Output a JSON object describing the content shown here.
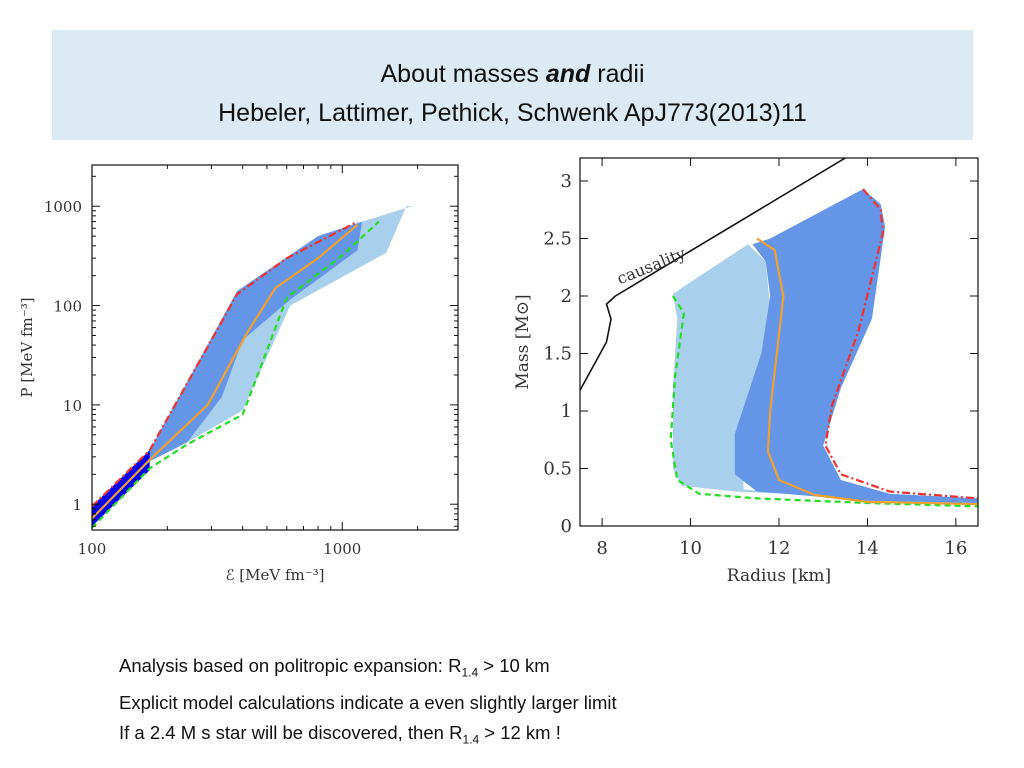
{
  "slide": {
    "title_prefix": "About masses ",
    "title_emph": "and",
    "title_suffix": " radii",
    "subtitle": "Hebeler, Lattimer, Pethick, Schwenk ApJ773(2013)11"
  },
  "chart_data": [
    {
      "type": "area",
      "xlabel": "ℰ [MeV fm⁻³]",
      "ylabel": "P [MeV fm⁻³]",
      "xscale": "log",
      "yscale": "log",
      "xlim": [
        100,
        2900
      ],
      "ylim": [
        0.55,
        2600
      ],
      "x_ticks": [
        100,
        1000
      ],
      "y_ticks": [
        1,
        10,
        100,
        1000
      ],
      "grid": false,
      "colors": {
        "light": "#a8d0ec",
        "medium": "#6495e6",
        "dark": "#0000ee",
        "soft": "#ef3030",
        "stiff": "#22dd22",
        "central": "#f0a030"
      },
      "series": [
        {
          "style": "light-band",
          "points": [
            [
              100,
              0.62
            ],
            [
              170,
              2.7
            ],
            [
              240,
              4.2
            ],
            [
              400,
              8.8
            ],
            [
              620,
              100
            ],
            [
              1500,
              340
            ],
            [
              1800,
              1000
            ],
            [
              1900,
              1000
            ],
            [
              1200,
              700
            ],
            [
              800,
              500
            ],
            [
              400,
              140
            ],
            [
              170,
              3.5
            ],
            [
              100,
              0.95
            ]
          ]
        },
        {
          "style": "medium-band",
          "points": [
            [
              100,
              0.62
            ],
            [
              170,
              2.7
            ],
            [
              240,
              4.2
            ],
            [
              330,
              12
            ],
            [
              400,
              45
            ],
            [
              620,
              115
            ],
            [
              1150,
              360
            ],
            [
              1200,
              700
            ],
            [
              800,
              500
            ],
            [
              380,
              140
            ],
            [
              170,
              3.5
            ],
            [
              100,
              0.95
            ]
          ]
        },
        {
          "style": "dark-band",
          "points": [
            [
              100,
              0.6
            ],
            [
              170,
              2.2
            ],
            [
              170,
              3.5
            ],
            [
              100,
              0.95
            ]
          ]
        },
        {
          "style": "soft-dash-dot",
          "points": [
            [
              100,
              0.95
            ],
            [
              170,
              3.5
            ],
            [
              320,
              60
            ],
            [
              380,
              130
            ],
            [
              600,
              300
            ],
            [
              1150,
              700
            ]
          ]
        },
        {
          "style": "stiff-dashed",
          "points": [
            [
              100,
              0.58
            ],
            [
              170,
              2.3
            ],
            [
              240,
              4.0
            ],
            [
              400,
              8.0
            ],
            [
              600,
              120
            ],
            [
              1000,
              320
            ],
            [
              1400,
              700
            ]
          ]
        },
        {
          "style": "central",
          "points": [
            [
              100,
              0.72
            ],
            [
              170,
              2.8
            ],
            [
              290,
              10
            ],
            [
              420,
              55
            ],
            [
              540,
              150
            ],
            [
              800,
              300
            ],
            [
              1150,
              650
            ]
          ]
        }
      ]
    },
    {
      "type": "line",
      "xlabel": "Radius [km]",
      "ylabel": "Mass [M⊙]",
      "xlim": [
        7.5,
        16.5
      ],
      "ylim": [
        0,
        3.2
      ],
      "x_ticks": [
        8,
        10,
        12,
        14,
        16
      ],
      "y_ticks": [
        0,
        0.5,
        1,
        1.5,
        2,
        2.5,
        3
      ],
      "y_tick_labels": [
        "0",
        "0.5",
        "1",
        "1.5",
        "2",
        "2.5",
        "3"
      ],
      "annotations": [
        {
          "text": "causality"
        }
      ],
      "grid": false,
      "series": [
        {
          "style": "causality",
          "points": [
            [
              7.5,
              1.18
            ],
            [
              8.1,
              1.6
            ],
            [
              8.2,
              1.8
            ],
            [
              8.1,
              1.93
            ],
            [
              8.3,
              2.0
            ],
            [
              13.5,
              3.2
            ]
          ]
        },
        {
          "style": "light-band",
          "points": [
            [
              9.6,
              2.02
            ],
            [
              9.7,
              1.8
            ],
            [
              9.6,
              1.2
            ],
            [
              9.6,
              0.5
            ],
            [
              9.8,
              0.35
            ],
            [
              11.0,
              0.3
            ],
            [
              14.0,
              0.25
            ],
            [
              16.5,
              0.22
            ],
            [
              16.5,
              0.19
            ],
            [
              14,
              0.21
            ],
            [
              11.2,
              0.32
            ],
            [
              11.2,
              0.5
            ],
            [
              11.6,
              1.2
            ],
            [
              11.8,
              1.9
            ],
            [
              11.7,
              2.3
            ],
            [
              11.3,
              2.45
            ]
          ]
        },
        {
          "style": "medium-band",
          "points": [
            [
              11.4,
              2.45
            ],
            [
              11.8,
              2.5
            ],
            [
              13.9,
              2.93
            ],
            [
              14.3,
              2.8
            ],
            [
              14.4,
              2.6
            ],
            [
              14.1,
              1.8
            ],
            [
              13.4,
              1.2
            ],
            [
              13.0,
              0.7
            ],
            [
              13.4,
              0.4
            ],
            [
              14.5,
              0.28
            ],
            [
              16.5,
              0.24
            ],
            [
              16.5,
              0.2
            ],
            [
              14.0,
              0.22
            ],
            [
              11.5,
              0.3
            ],
            [
              11.0,
              0.45
            ],
            [
              11.0,
              0.8
            ],
            [
              11.6,
              1.5
            ],
            [
              11.8,
              2.0
            ],
            [
              11.7,
              2.3
            ]
          ]
        },
        {
          "style": "stiff-dashed",
          "points": [
            [
              9.6,
              2.0
            ],
            [
              9.85,
              1.85
            ],
            [
              9.65,
              1.3
            ],
            [
              9.55,
              0.75
            ],
            [
              9.7,
              0.4
            ],
            [
              10.2,
              0.28
            ],
            [
              11.5,
              0.24
            ],
            [
              14,
              0.2
            ],
            [
              16.5,
              0.17
            ]
          ]
        },
        {
          "style": "soft-dash-dot",
          "points": [
            [
              13.9,
              2.93
            ],
            [
              14.3,
              2.75
            ],
            [
              14.35,
              2.55
            ],
            [
              13.8,
              1.7
            ],
            [
              13.2,
              1.05
            ],
            [
              13.05,
              0.7
            ],
            [
              13.4,
              0.45
            ],
            [
              14.5,
              0.3
            ],
            [
              16.5,
              0.24
            ]
          ]
        },
        {
          "style": "central",
          "points": [
            [
              11.5,
              2.5
            ],
            [
              11.9,
              2.4
            ],
            [
              12.1,
              2.0
            ],
            [
              11.95,
              1.5
            ],
            [
              11.8,
              1.0
            ],
            [
              11.75,
              0.65
            ],
            [
              12.0,
              0.4
            ],
            [
              12.8,
              0.27
            ],
            [
              14,
              0.21
            ],
            [
              16.5,
              0.19
            ]
          ]
        }
      ]
    }
  ],
  "notes": {
    "line1_pre": "Analysis based on politropic expansion: R",
    "line1_sub": "1.4",
    "line1_post": " > 10 km",
    "line2": "Explicit model calculations indicate a even slightly larger limit",
    "line3_pre": "If a 2.4 M s star will be discovered, then R",
    "line3_sub": "1.4",
    "line3_post": " > 12 km !"
  }
}
